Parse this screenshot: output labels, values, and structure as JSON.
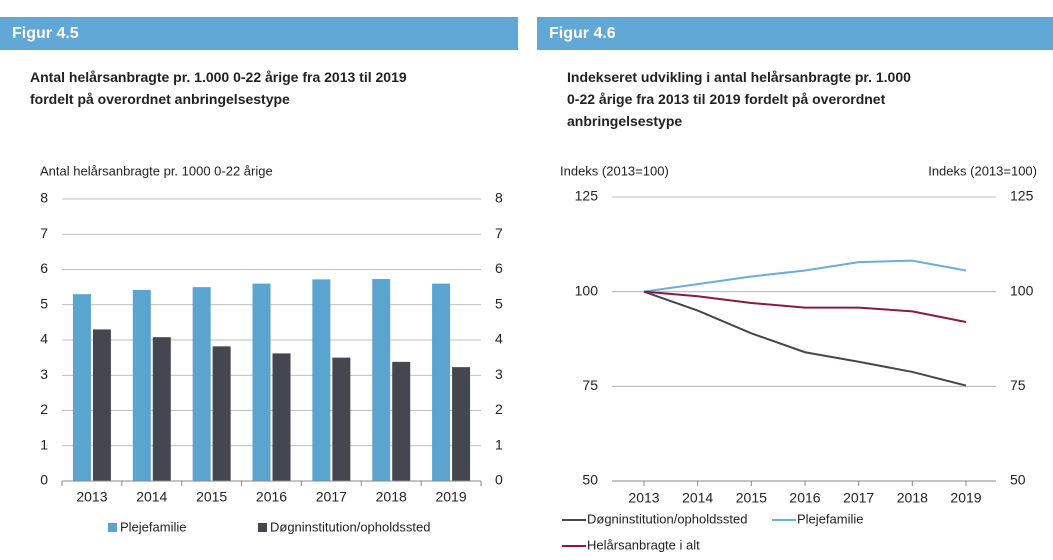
{
  "chart_data": [
    {
      "type": "bar",
      "figure_label": "Figur 4.5",
      "title": "Antal helårsanbragte pr. 1.000 0-22 årige fra 2013 til 2019 fordelt på overordnet anbringelsestype",
      "y_label": "Antal helårsanbragte pr. 1000 0-22 årige",
      "categories": [
        "2013",
        "2014",
        "2015",
        "2016",
        "2017",
        "2018",
        "2019"
      ],
      "series": [
        {
          "name": "Plejefamilie",
          "color": "#5ba4cf",
          "values": [
            5.3,
            5.42,
            5.5,
            5.6,
            5.72,
            5.73,
            5.6
          ]
        },
        {
          "name": "Døgninstitution/opholdssted",
          "color": "#44474f",
          "values": [
            4.3,
            4.08,
            3.82,
            3.62,
            3.5,
            3.38,
            3.23
          ]
        }
      ],
      "ylim": [
        0,
        8
      ],
      "yticks": [
        0,
        1,
        2,
        3,
        4,
        5,
        6,
        7,
        8
      ],
      "y2lim": [
        0,
        8
      ],
      "y2ticks": [
        0,
        1,
        2,
        3,
        4,
        5,
        6,
        7,
        8
      ],
      "grid": true
    },
    {
      "type": "line",
      "figure_label": "Figur 4.6",
      "title": "Indekseret udvikling i antal helårsanbragte pr. 1.000 0-22 årige fra 2013 til 2019 fordelt på overordnet anbringelsestype",
      "y_label": "Indeks (2013=100)",
      "y2_label": "Indeks (2013=100)",
      "categories": [
        "2013",
        "2014",
        "2015",
        "2016",
        "2017",
        "2018",
        "2019"
      ],
      "series": [
        {
          "name": "Døgninstitution/opholdssted",
          "color": "#44474f",
          "values": [
            100,
            95,
            89,
            84,
            81.5,
            78.8,
            75.2
          ]
        },
        {
          "name": "Plejefamilie",
          "color": "#6aaedb",
          "values": [
            100,
            102,
            104,
            105.6,
            107.8,
            108.2,
            105.6
          ]
        },
        {
          "name": "Helårsanbragte i alt",
          "color": "#8b1a40",
          "values": [
            100,
            98.8,
            97,
            95.8,
            95.8,
            94.8,
            92
          ]
        }
      ],
      "ylim": [
        50,
        125
      ],
      "yticks": [
        50,
        75,
        100,
        125
      ],
      "y2lim": [
        50,
        125
      ],
      "y2ticks": [
        50,
        75,
        100,
        125
      ],
      "grid": true
    }
  ]
}
